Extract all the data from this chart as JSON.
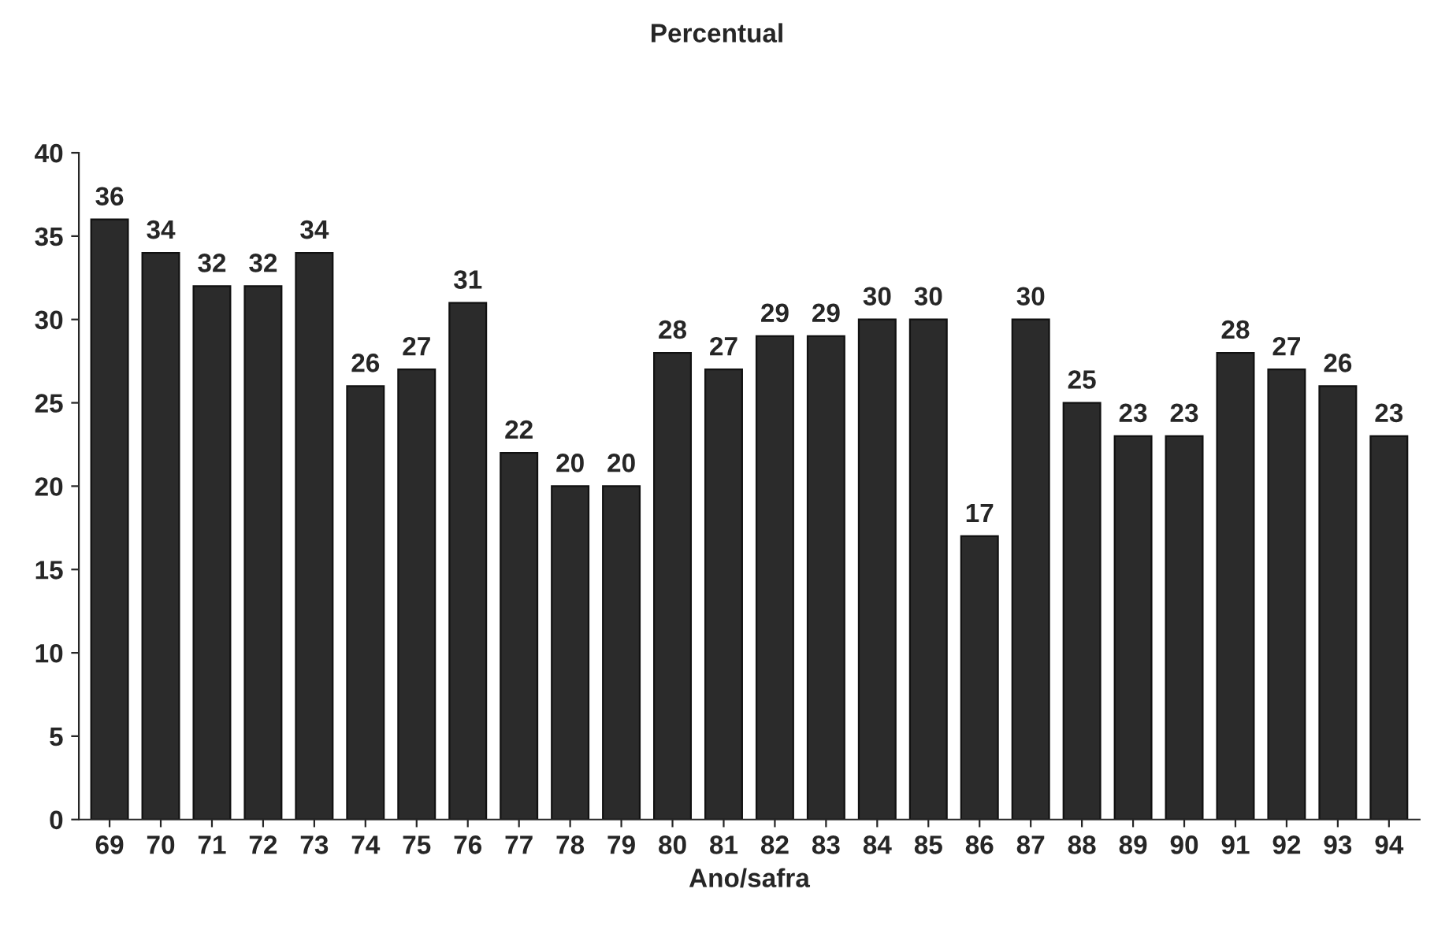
{
  "chart_data": {
    "type": "bar",
    "title": "Percentual",
    "xlabel": "Ano/safra",
    "categories": [
      "69",
      "70",
      "71",
      "72",
      "73",
      "74",
      "75",
      "76",
      "77",
      "78",
      "79",
      "80",
      "81",
      "82",
      "83",
      "84",
      "85",
      "86",
      "87",
      "88",
      "89",
      "90",
      "91",
      "92",
      "93",
      "94"
    ],
    "values": [
      36,
      34,
      32,
      32,
      34,
      26,
      27,
      31,
      22,
      20,
      20,
      28,
      27,
      29,
      29,
      30,
      30,
      17,
      30,
      25,
      23,
      23,
      28,
      27,
      26,
      23
    ],
    "color": "#2b2b2b",
    "ylim": [
      0,
      40
    ],
    "yticks": [
      0,
      5,
      10,
      15,
      20,
      25,
      30,
      35,
      40
    ],
    "grid": false,
    "data_labels": true
  }
}
